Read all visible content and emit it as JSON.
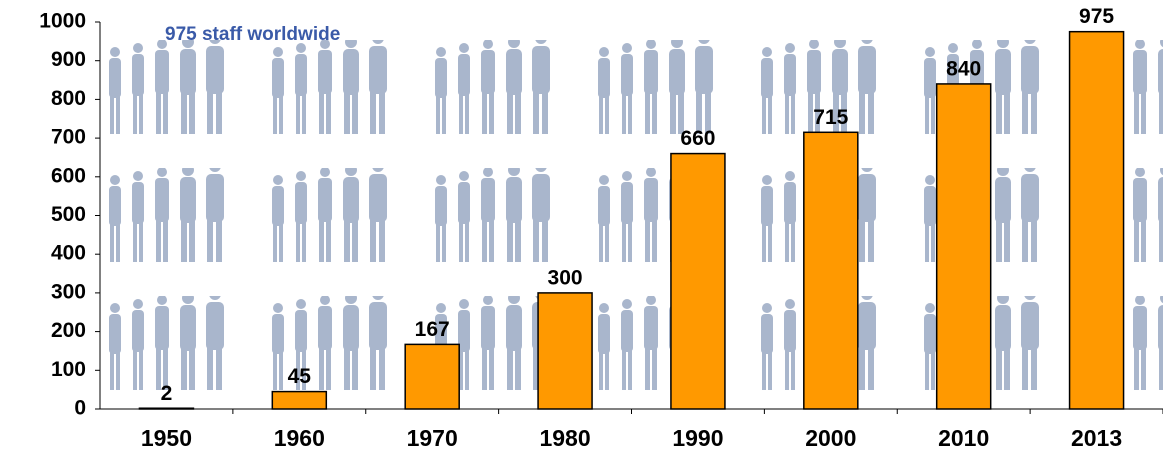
{
  "chart_data": {
    "type": "bar",
    "annotation": "975 staff worldwide",
    "categories": [
      "1950",
      "1960",
      "1970",
      "1980",
      "1990",
      "2000",
      "2010",
      "2013"
    ],
    "values": [
      2,
      45,
      167,
      300,
      660,
      715,
      840,
      975
    ],
    "color": "#ff9900",
    "ylim": [
      0,
      1000
    ],
    "yticks": [
      0,
      100,
      200,
      300,
      400,
      500,
      600,
      700,
      800,
      900,
      1000
    ]
  }
}
